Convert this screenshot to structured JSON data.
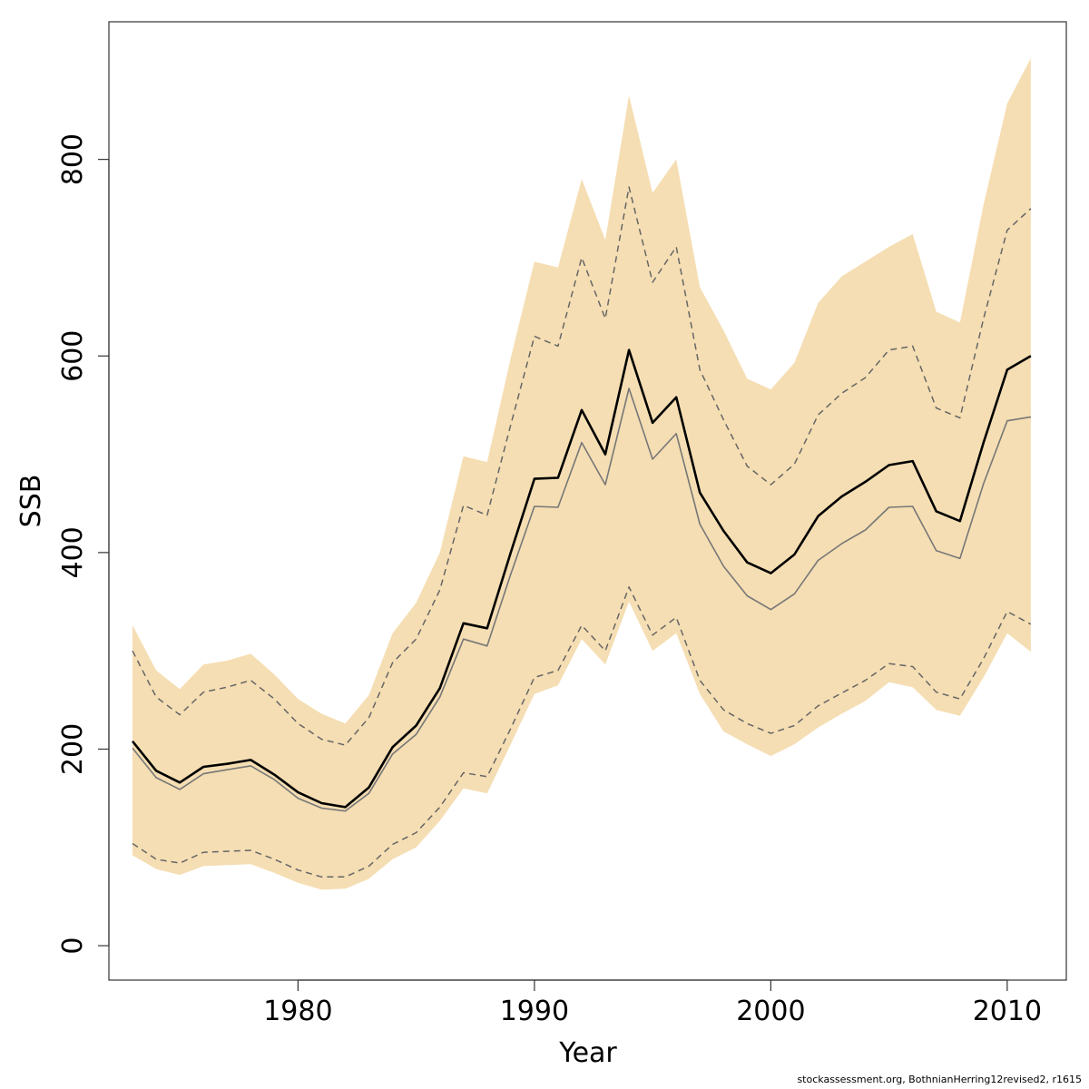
{
  "chart_data": {
    "type": "line",
    "xlabel": "Year",
    "ylabel": "SSB",
    "xlim": [
      1972,
      2012.5
    ],
    "ylim": [
      -35,
      940
    ],
    "x_ticks": [
      1980,
      1990,
      2000,
      2010
    ],
    "y_ticks": [
      0,
      200,
      400,
      600,
      800
    ],
    "grid": false,
    "band_color": "#f5deb3",
    "x": [
      1973,
      1974,
      1975,
      1976,
      1977,
      1978,
      1979,
      1980,
      1981,
      1982,
      1983,
      1984,
      1985,
      1986,
      1987,
      1988,
      1989,
      1990,
      1991,
      1992,
      1993,
      1994,
      1995,
      1996,
      1997,
      1998,
      1999,
      2000,
      2001,
      2002,
      2003,
      2004,
      2005,
      2006,
      2007,
      2008,
      2009,
      2010,
      2011
    ],
    "series": [
      {
        "role": "estimate",
        "color": "#000000",
        "style": "solid",
        "width": 2.6,
        "values": [
          208,
          178,
          166,
          182,
          185,
          189,
          174,
          156,
          145,
          141,
          161,
          202,
          224,
          262,
          328,
          323,
          400,
          475,
          476,
          545,
          500,
          606,
          532,
          558,
          461,
          422,
          390,
          379,
          398,
          437,
          457,
          472,
          489,
          493,
          442,
          432,
          512,
          586,
          600
        ]
      },
      {
        "role": "estimate-2",
        "color": "#777777",
        "style": "solid",
        "width": 1.6,
        "values": [
          201,
          171,
          159,
          175,
          179,
          183,
          169,
          150,
          140,
          137,
          155,
          195,
          215,
          253,
          312,
          305,
          378,
          447,
          446,
          512,
          469,
          567,
          495,
          521,
          429,
          386,
          356,
          342,
          358,
          392,
          409,
          423,
          446,
          447,
          402,
          394,
          470,
          534,
          538
        ]
      },
      {
        "role": "upper-ci",
        "color": "#666666",
        "style": "dashed",
        "width": 1.5,
        "values": [
          300,
          253,
          235,
          258,
          263,
          270,
          251,
          226,
          210,
          204,
          232,
          288,
          312,
          362,
          448,
          438,
          530,
          620,
          610,
          700,
          638,
          772,
          675,
          711,
          586,
          535,
          488,
          469,
          490,
          540,
          562,
          578,
          606,
          610,
          547,
          537,
          638,
          728,
          750
        ]
      },
      {
        "role": "lower-ci",
        "color": "#666666",
        "style": "dashed",
        "width": 1.5,
        "values": [
          104,
          88,
          84,
          95,
          96,
          97,
          88,
          77,
          70,
          70,
          81,
          103,
          115,
          141,
          176,
          172,
          221,
          273,
          280,
          326,
          300,
          365,
          316,
          334,
          270,
          240,
          226,
          216,
          224,
          244,
          257,
          270,
          287,
          284,
          258,
          251,
          292,
          340,
          327
        ]
      }
    ],
    "band": {
      "upper": [
        326,
        280,
        261,
        286,
        290,
        297,
        276,
        251,
        236,
        226,
        255,
        318,
        349,
        400,
        498,
        492,
        598,
        696,
        690,
        780,
        718,
        865,
        766,
        800,
        670,
        626,
        577,
        566,
        593,
        654,
        681,
        696,
        711,
        724,
        645,
        634,
        754,
        857,
        903
      ],
      "lower": [
        92,
        78,
        72,
        81,
        82,
        83,
        74,
        64,
        57,
        58,
        68,
        88,
        100,
        127,
        160,
        155,
        205,
        256,
        265,
        312,
        286,
        350,
        300,
        318,
        256,
        218,
        205,
        193,
        205,
        222,
        236,
        249,
        268,
        263,
        240,
        234,
        273,
        318,
        299
      ]
    }
  },
  "footnote": "stockassessment.org, BothnianHerring12revised2, r1615"
}
